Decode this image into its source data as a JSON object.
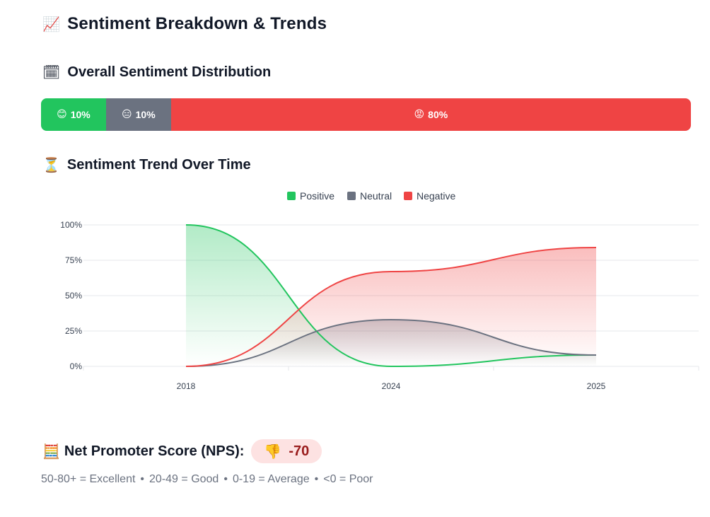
{
  "header": {
    "icon": "📈",
    "title": "Sentiment Breakdown & Trends"
  },
  "distribution": {
    "icon": "🗓",
    "title": "Overall Sentiment Distribution",
    "segments": [
      {
        "key": "positive",
        "emoji": "😊",
        "label": "10%",
        "value": 10,
        "color": "#22c55e"
      },
      {
        "key": "neutral",
        "emoji": "😑",
        "label": "10%",
        "value": 10,
        "color": "#6b7280"
      },
      {
        "key": "negative",
        "emoji": "😡",
        "label": "80%",
        "value": 80,
        "color": "#ef4444"
      }
    ]
  },
  "trend": {
    "icon": "⏳",
    "title": "Sentiment Trend Over Time"
  },
  "chart_data": {
    "type": "area",
    "title": "Sentiment Trend Over Time",
    "categories": [
      "2018",
      "2024",
      "2025"
    ],
    "series": [
      {
        "name": "Positive",
        "color": "#22c55e",
        "values": [
          100,
          0,
          8
        ]
      },
      {
        "name": "Neutral",
        "color": "#6b7280",
        "values": [
          0,
          33,
          8
        ]
      },
      {
        "name": "Negative",
        "color": "#ef4444",
        "values": [
          0,
          67,
          84
        ]
      }
    ],
    "ylim": [
      0,
      100
    ],
    "yticks": [
      "0%",
      "25%",
      "50%",
      "75%",
      "100%"
    ],
    "legend": "top-center",
    "grid": true
  },
  "nps": {
    "icon": "🧮",
    "label": "Net Promoter Score (NPS):",
    "badge_icon": "👎",
    "value": "-70",
    "scale": [
      "50-80+ = Excellent",
      "20-49 = Good",
      "0-19 = Average",
      "<0 = Poor"
    ],
    "separator": "•"
  }
}
